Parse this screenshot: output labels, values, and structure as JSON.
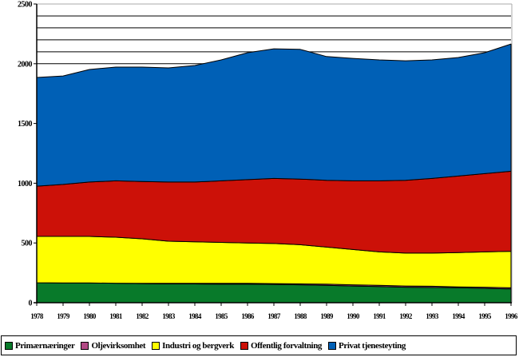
{
  "chart_data": {
    "type": "area",
    "stacked": true,
    "title": "",
    "xlabel": "",
    "ylabel": "",
    "ylim": [
      0,
      2500
    ],
    "yticks": [
      0,
      500,
      1000,
      1500,
      2000,
      2500
    ],
    "ytick_labels": [
      "0",
      "500",
      "1000",
      "1500",
      "2000",
      "2500"
    ],
    "grid": "horizontal lines at 2100, 2200, 2300, 2400, 2500 only",
    "legend_position": "bottom",
    "x": [
      "1978",
      "1979",
      "1980",
      "1981",
      "1982",
      "1983",
      "1984",
      "1985",
      "1986",
      "1987",
      "1988",
      "1989",
      "1990",
      "1991",
      "1992",
      "1993",
      "1994",
      "1995",
      "1996"
    ],
    "series": [
      {
        "name": "Primærnæringer",
        "color": "#087a2a",
        "values": [
          167,
          165,
          165,
          163,
          160,
          157,
          157,
          155,
          155,
          153,
          150,
          145,
          140,
          135,
          130,
          128,
          125,
          120,
          115
        ]
      },
      {
        "name": "Oljevirksomhet",
        "color": "#b24a85",
        "values": [
          0,
          0,
          0,
          0,
          2,
          5,
          5,
          7,
          7,
          7,
          8,
          10,
          10,
          10,
          10,
          10,
          7,
          10,
          10
        ]
      },
      {
        "name": "Industri og bergverk",
        "color": "#ffff00",
        "values": [
          388,
          390,
          390,
          385,
          373,
          353,
          348,
          343,
          338,
          335,
          327,
          310,
          295,
          280,
          275,
          277,
          288,
          295,
          305
        ]
      },
      {
        "name": "Offentlig forvaltning",
        "color": "#cc1108",
        "values": [
          420,
          435,
          455,
          472,
          480,
          495,
          500,
          515,
          530,
          545,
          550,
          560,
          575,
          595,
          610,
          625,
          640,
          655,
          670
        ]
      },
      {
        "name": "Privat tjenesteyting",
        "color": "#0060b6",
        "values": [
          910,
          908,
          942,
          952,
          957,
          955,
          975,
          1012,
          1062,
          1085,
          1085,
          1035,
          1025,
          1012,
          1000,
          992,
          992,
          1012,
          1065
        ]
      }
    ]
  },
  "legend": {
    "items": [
      {
        "label": "Primærnæringer",
        "color": "#087a2a"
      },
      {
        "label": "Oljevirksomhet",
        "color": "#b24a85"
      },
      {
        "label": "Industri og bergverk",
        "color": "#ffff00"
      },
      {
        "label": "Offentlig forvaltning",
        "color": "#cc1108"
      },
      {
        "label": "Privat tjenesteyting",
        "color": "#0060b6"
      }
    ]
  }
}
